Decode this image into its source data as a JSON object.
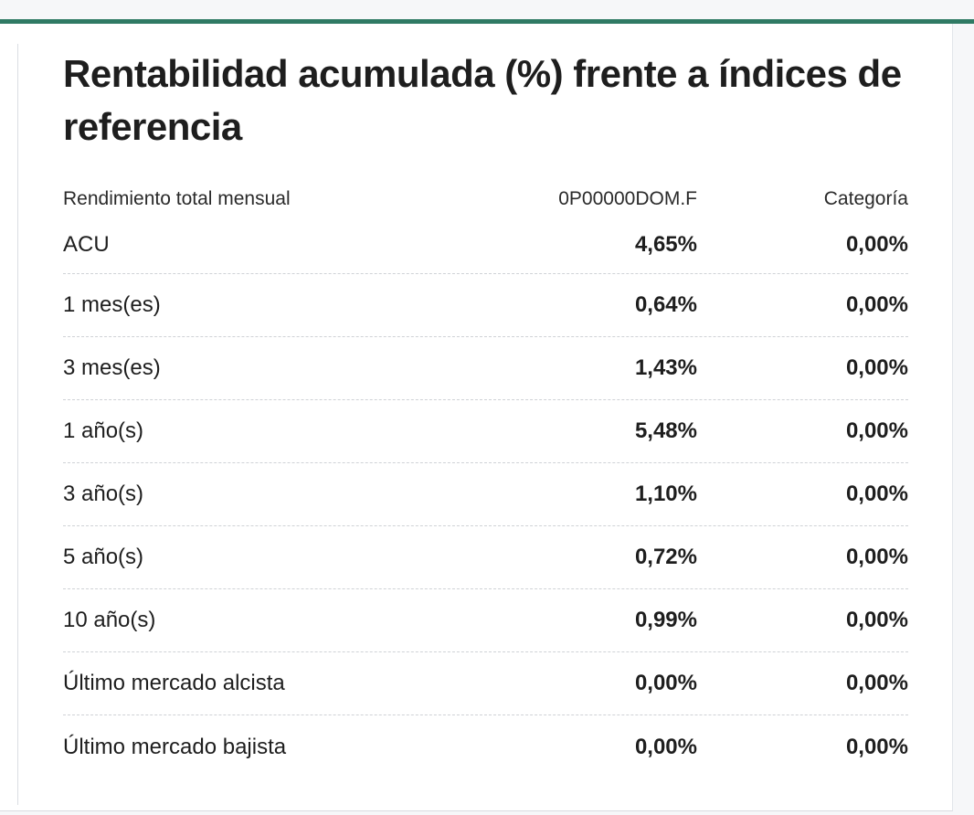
{
  "title": "Rentabilidad acumulada (%) frente a índices de referencia",
  "colors": {
    "accent": "#2f7a64",
    "background": "#ffffff",
    "page_background": "#f6f7f9",
    "text": "#1e1e1e"
  },
  "table": {
    "headers": {
      "label": "Rendimiento total mensual",
      "fund": "0P00000DOM.F",
      "category": "Categoría"
    },
    "rows": [
      {
        "label": "ACU",
        "fund": "4,65%",
        "category": "0,00%"
      },
      {
        "label": "1 mes(es)",
        "fund": "0,64%",
        "category": "0,00%"
      },
      {
        "label": "3 mes(es)",
        "fund": "1,43%",
        "category": "0,00%"
      },
      {
        "label": "1 año(s)",
        "fund": "5,48%",
        "category": "0,00%"
      },
      {
        "label": "3 año(s)",
        "fund": "1,10%",
        "category": "0,00%"
      },
      {
        "label": "5 año(s)",
        "fund": "0,72%",
        "category": "0,00%"
      },
      {
        "label": "10 año(s)",
        "fund": "0,99%",
        "category": "0,00%"
      },
      {
        "label": "Último mercado alcista",
        "fund": "0,00%",
        "category": "0,00%"
      },
      {
        "label": "Último mercado bajista",
        "fund": "0,00%",
        "category": "0,00%"
      }
    ]
  }
}
